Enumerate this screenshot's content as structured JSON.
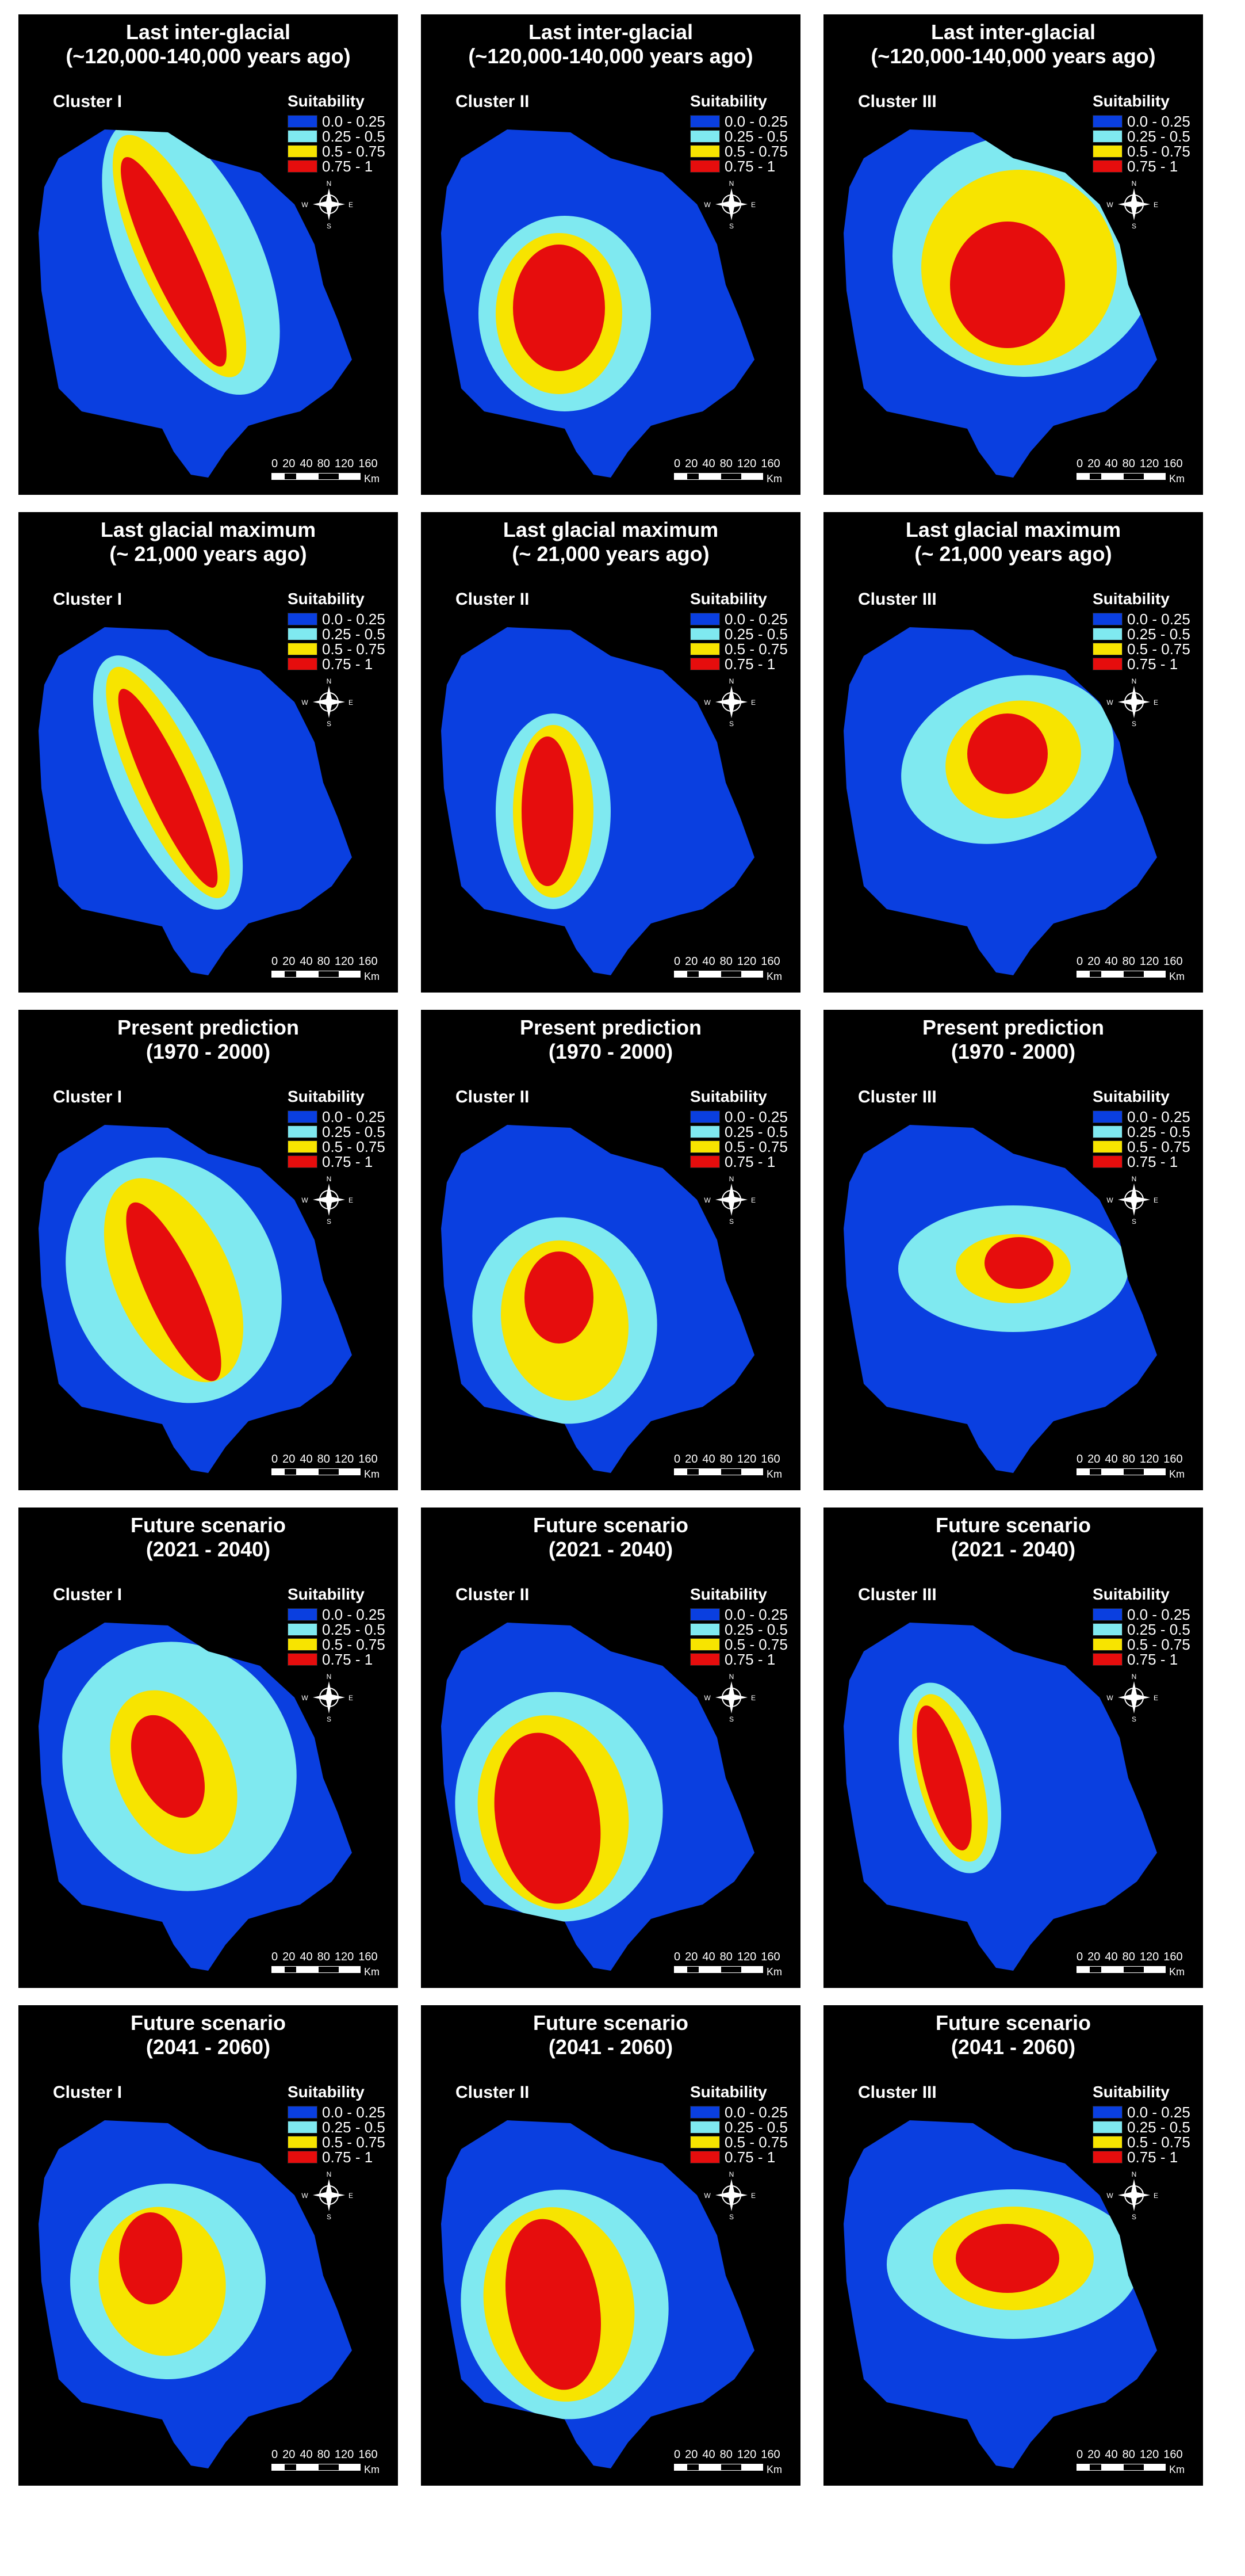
{
  "rows": [
    {
      "title_line1": "Last inter-glacial",
      "title_line2": "(~120,000-140,000 years ago)"
    },
    {
      "title_line1": "Last glacial maximum",
      "title_line2": "(~ 21,000 years ago)"
    },
    {
      "title_line1": "Present prediction",
      "title_line2": "(1970 - 2000)"
    },
    {
      "title_line1": "Future scenario",
      "title_line2": "(2021 - 2040)"
    },
    {
      "title_line1": "Future scenario",
      "title_line2": "(2041 - 2060)"
    }
  ],
  "clusters": [
    "Cluster I",
    "Cluster II",
    "Cluster III"
  ],
  "legend": {
    "title": "Suitability",
    "classes": [
      {
        "label": "0.0 - 0.25",
        "color": "#0a3fe0"
      },
      {
        "label": "0.25 - 0.5",
        "color": "#7fe9f0"
      },
      {
        "label": "0.5 - 0.75",
        "color": "#f7e400"
      },
      {
        "label": "0.75 - 1",
        "color": "#e60d0d"
      }
    ]
  },
  "compass": {
    "n": "N",
    "s": "S",
    "e": "E",
    "w": "W"
  },
  "scale": {
    "ticks": [
      "0",
      "20",
      "40",
      "80",
      "120",
      "160"
    ],
    "unit": "Km"
  },
  "colors": {
    "background": "#000000",
    "low": "#0a3fe0",
    "mid_low": "#7fe9f0",
    "mid_high": "#f7e400",
    "high": "#e60d0d"
  }
}
